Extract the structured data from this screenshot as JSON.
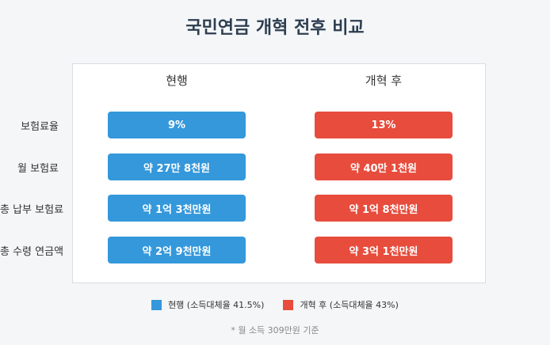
{
  "title": "국민연금 개혁 전후 비교",
  "columns": [
    "현행",
    "개혁 후"
  ],
  "colors": {
    "current": "#3498db",
    "reform": "#e74c3c"
  },
  "legend": [
    "현행 (소득대체율 41.5%)",
    "개혁 후 (소득대체율 43%)"
  ],
  "footnote": "* 월 소득 309만원 기준",
  "chart_data": {
    "type": "table",
    "title": "국민연금 개혁 전후 비교",
    "columns": [
      "현행",
      "개혁 후"
    ],
    "rows": [
      {
        "label": "보험료율",
        "values": [
          "9%",
          "13%"
        ]
      },
      {
        "label": "월 보험료",
        "values": [
          "약 27만 8천원",
          "약 40만 1천원"
        ]
      },
      {
        "label": "총 납부 보험료",
        "values": [
          "약 1억 3천만원",
          "약 1억 8천만원"
        ]
      },
      {
        "label": "총 수령 연금액",
        "values": [
          "약 2억 9천만원",
          "약 3억 1천만원"
        ]
      }
    ],
    "series": [
      {
        "name": "현행 (소득대체율 41.5%)",
        "color": "#3498db"
      },
      {
        "name": "개혁 후 (소득대체율 43%)",
        "color": "#e74c3c"
      }
    ],
    "note": "* 월 소득 309만원 기준"
  }
}
